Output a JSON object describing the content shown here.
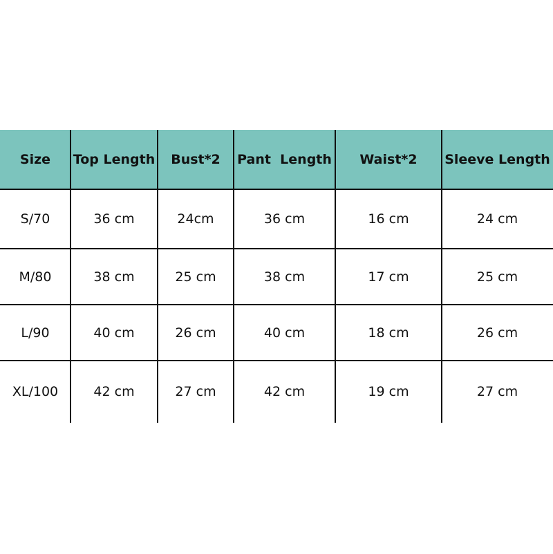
{
  "table": {
    "header_color": "#7cc4bd",
    "columns": [
      "Size",
      "Top Length",
      "Bust*2",
      "Pant  Length",
      "Waist*2",
      "Sleeve Length"
    ],
    "rows": [
      [
        "S/70",
        "36 cm",
        "24cm",
        "36 cm",
        "16 cm",
        "24 cm"
      ],
      [
        "M/80",
        "38 cm",
        "25 cm",
        "38 cm",
        "17 cm",
        "25 cm"
      ],
      [
        "L/90",
        "40 cm",
        "26 cm",
        "40 cm",
        "18 cm",
        "26 cm"
      ],
      [
        "XL/100",
        "42 cm",
        "27 cm",
        "42 cm",
        "19 cm",
        "27 cm"
      ]
    ]
  }
}
